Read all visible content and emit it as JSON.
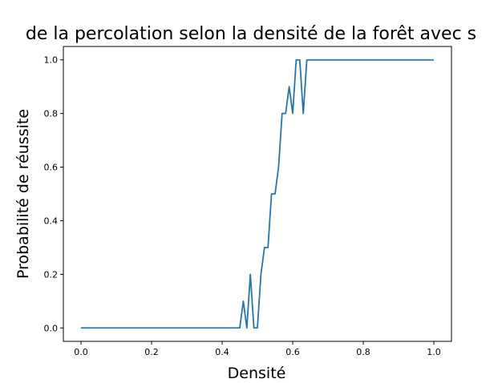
{
  "chart_data": {
    "type": "line",
    "title": "de la percolation selon la densité de la forêt avec s",
    "xlabel": "Densité",
    "ylabel": "Probabilité de réussite",
    "xlim": [
      -0.05,
      1.05
    ],
    "ylim": [
      -0.05,
      1.05
    ],
    "grid": false,
    "x_ticks": [
      "0.0",
      "0.2",
      "0.4",
      "0.6",
      "0.8",
      "1.0"
    ],
    "y_ticks": [
      "0.0",
      "0.2",
      "0.4",
      "0.6",
      "0.8",
      "1.0"
    ],
    "line_color": "#1f77b4",
    "series": [
      {
        "points": [
          [
            0.0,
            0.0
          ],
          [
            0.45,
            0.0
          ],
          [
            0.46,
            0.1
          ],
          [
            0.47,
            0.0
          ],
          [
            0.48,
            0.2
          ],
          [
            0.49,
            0.0
          ],
          [
            0.5,
            0.0
          ],
          [
            0.51,
            0.2
          ],
          [
            0.52,
            0.3
          ],
          [
            0.53,
            0.3
          ],
          [
            0.54,
            0.5
          ],
          [
            0.55,
            0.5
          ],
          [
            0.56,
            0.6
          ],
          [
            0.57,
            0.8
          ],
          [
            0.58,
            0.8
          ],
          [
            0.59,
            0.9
          ],
          [
            0.6,
            0.8
          ],
          [
            0.61,
            1.0
          ],
          [
            0.62,
            1.0
          ],
          [
            0.63,
            0.8
          ],
          [
            0.64,
            1.0
          ],
          [
            1.0,
            1.0
          ]
        ]
      }
    ]
  }
}
